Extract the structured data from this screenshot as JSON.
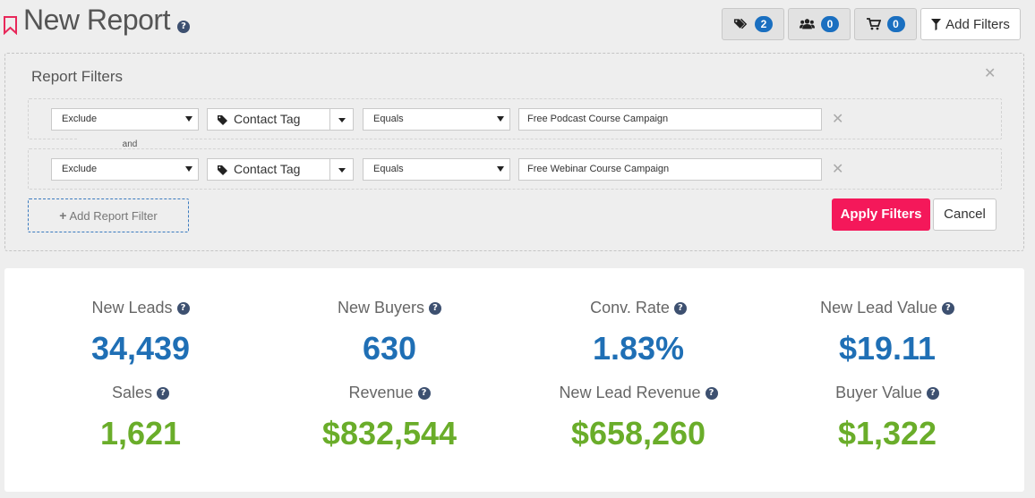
{
  "header": {
    "title": "New Report",
    "help_icon": "question-circle-icon",
    "buttons": [
      {
        "icon": "tags-icon",
        "count": "2"
      },
      {
        "icon": "users-icon",
        "count": "0"
      },
      {
        "icon": "cart-icon",
        "count": "0"
      }
    ],
    "add_filters_label": "Add Filters"
  },
  "filters": {
    "title": "Report Filters",
    "connector": "and",
    "rows": [
      {
        "mode": "Exclude",
        "field": "Contact Tag",
        "operator": "Equals",
        "value": "Free Podcast Course Campaign"
      },
      {
        "mode": "Exclude",
        "field": "Contact Tag",
        "operator": "Equals",
        "value": "Free Webinar Course Campaign"
      }
    ],
    "add_label": "Add Report Filter",
    "apply_label": "Apply Filters",
    "cancel_label": "Cancel"
  },
  "stats": {
    "new_leads": {
      "label": "New Leads",
      "value": "34,439"
    },
    "new_buyers": {
      "label": "New Buyers",
      "value": "630"
    },
    "conv_rate": {
      "label": "Conv. Rate",
      "value": "1.83%"
    },
    "new_lead_value": {
      "label": "New Lead Value",
      "value": "$19.11"
    },
    "sales": {
      "label": "Sales",
      "value": "1,621"
    },
    "revenue": {
      "label": "Revenue",
      "value": "$832,544"
    },
    "new_lead_revenue": {
      "label": "New Lead Revenue",
      "value": "$658,260"
    },
    "buyer_value": {
      "label": "Buyer Value",
      "value": "$1,322"
    }
  },
  "colors": {
    "accent": "#f4185a",
    "primary_value": "#1f6fb5",
    "secondary_value": "#6aad2a",
    "badge": "#1a6fc0"
  }
}
